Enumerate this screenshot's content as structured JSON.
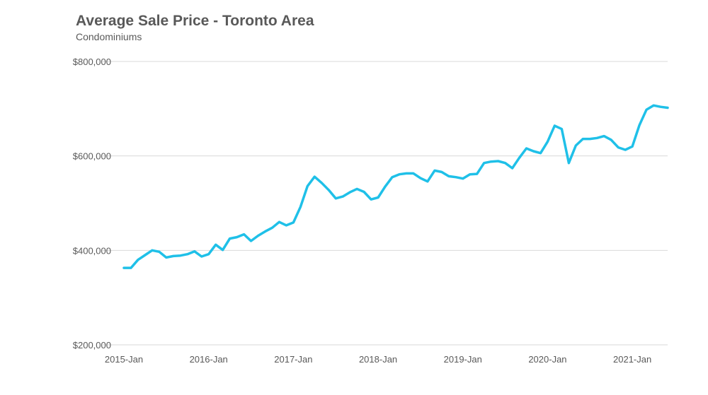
{
  "chart_data": {
    "type": "line",
    "title": "Average Sale Price - Toronto Area",
    "subtitle": "Condominiums",
    "xlabel": "",
    "ylabel": "",
    "ylim": [
      200000,
      800000
    ],
    "y_ticks": [
      {
        "value": 200000,
        "label": "$200,000"
      },
      {
        "value": 400000,
        "label": "$400,000"
      },
      {
        "value": 600000,
        "label": "$600,000"
      },
      {
        "value": 800000,
        "label": "$800,000"
      }
    ],
    "x_ticks": [
      {
        "index": 0,
        "label": "2015-Jan"
      },
      {
        "index": 12,
        "label": "2016-Jan"
      },
      {
        "index": 24,
        "label": "2017-Jan"
      },
      {
        "index": 36,
        "label": "2018-Jan"
      },
      {
        "index": 48,
        "label": "2019-Jan"
      },
      {
        "index": 60,
        "label": "2020-Jan"
      },
      {
        "index": 72,
        "label": "2021-Jan"
      }
    ],
    "grid": true,
    "legend": "none",
    "series": [
      {
        "color": "#1fc0e8",
        "values": [
          363000,
          363000,
          380000,
          390000,
          400000,
          397000,
          385000,
          388000,
          389000,
          392000,
          398000,
          387000,
          392000,
          412000,
          401000,
          425000,
          428000,
          434000,
          420000,
          431000,
          440000,
          448000,
          460000,
          453000,
          459000,
          492000,
          536000,
          556000,
          543000,
          528000,
          510000,
          514000,
          523000,
          530000,
          524000,
          508000,
          512000,
          535000,
          555000,
          561000,
          563000,
          563000,
          553000,
          546000,
          569000,
          566000,
          557000,
          555000,
          552000,
          561000,
          562000,
          585000,
          588000,
          589000,
          585000,
          574000,
          596000,
          616000,
          610000,
          606000,
          630000,
          664000,
          657000,
          585000,
          622000,
          636000,
          636000,
          638000,
          642000,
          634000,
          618000,
          613000,
          620000,
          665000,
          698000,
          707000,
          704000,
          702000
        ]
      }
    ]
  }
}
